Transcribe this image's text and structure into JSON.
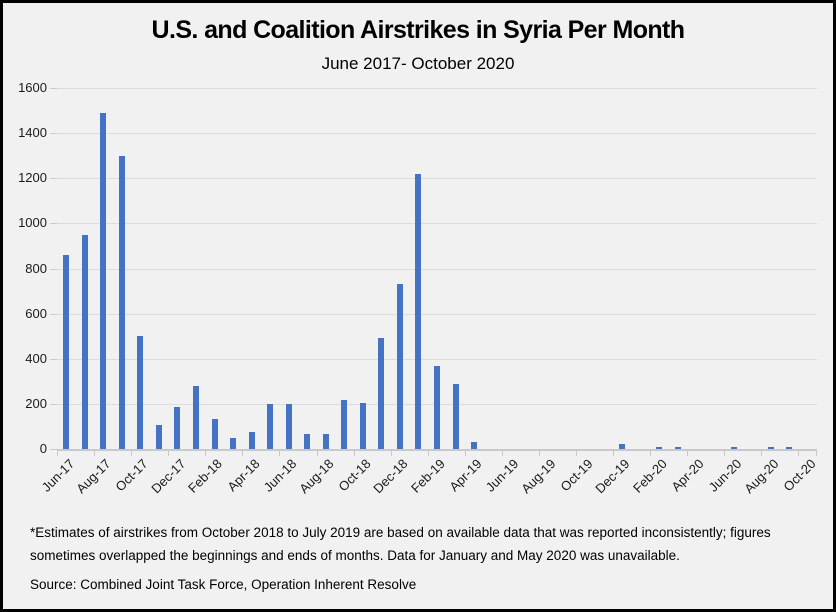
{
  "title": "U.S. and Coalition Airstrikes in Syria Per Month",
  "subtitle": "June 2017- October 2020",
  "footnote": "*Estimates of airstrikes from October 2018 to July 2019 are based on available data that was reported inconsistently; figures sometimes overlapped the beginnings and ends of months. Data for January and May 2020 was unavailable.",
  "source": "Source: Combined Joint Task Force, Operation Inherent Resolve",
  "colors": {
    "bar": "#4472C4",
    "background": "#f1f1f1",
    "gridline": "#dcdcdc",
    "axis": "#c9c9c9",
    "text": "#1a1a1a",
    "border": "#000000"
  },
  "chart_data": {
    "type": "bar",
    "title": "U.S. and Coalition Airstrikes in Syria Per Month",
    "subtitle": "June 2017- October 2020",
    "xlabel": "",
    "ylabel": "",
    "ylim": [
      0,
      1600
    ],
    "ytick_interval": 200,
    "ytick_labels": [
      "0",
      "200",
      "400",
      "600",
      "800",
      "1000",
      "1200",
      "1400",
      "1600"
    ],
    "grid": true,
    "legend": false,
    "xtick_label_every": 2,
    "categories": [
      "Jun-17",
      "Jul-17",
      "Aug-17",
      "Sep-17",
      "Oct-17",
      "Nov-17",
      "Dec-17",
      "Jan-18",
      "Feb-18",
      "Mar-18",
      "Apr-18",
      "May-18",
      "Jun-18",
      "Jul-18",
      "Aug-18",
      "Sep-18",
      "Oct-18",
      "Nov-18",
      "Dec-18",
      "Jan-19",
      "Feb-19",
      "Mar-19",
      "Apr-19",
      "May-19",
      "Jun-19",
      "Jul-19",
      "Aug-19",
      "Sep-19",
      "Oct-19",
      "Nov-19",
      "Dec-19",
      "Jan-20",
      "Feb-20",
      "Mar-20",
      "Apr-20",
      "May-20",
      "Jun-20",
      "Jul-20",
      "Aug-20",
      "Sep-20",
      "Oct-20"
    ],
    "values": [
      860,
      950,
      1490,
      1300,
      500,
      105,
      185,
      280,
      135,
      50,
      75,
      200,
      200,
      65,
      65,
      215,
      205,
      490,
      730,
      1220,
      370,
      290,
      30,
      0,
      0,
      0,
      0,
      0,
      0,
      0,
      20,
      null,
      10,
      10,
      0,
      null,
      10,
      0,
      10,
      10,
      0
    ],
    "missing_data_months": [
      "Jan-20",
      "May-20"
    ]
  }
}
